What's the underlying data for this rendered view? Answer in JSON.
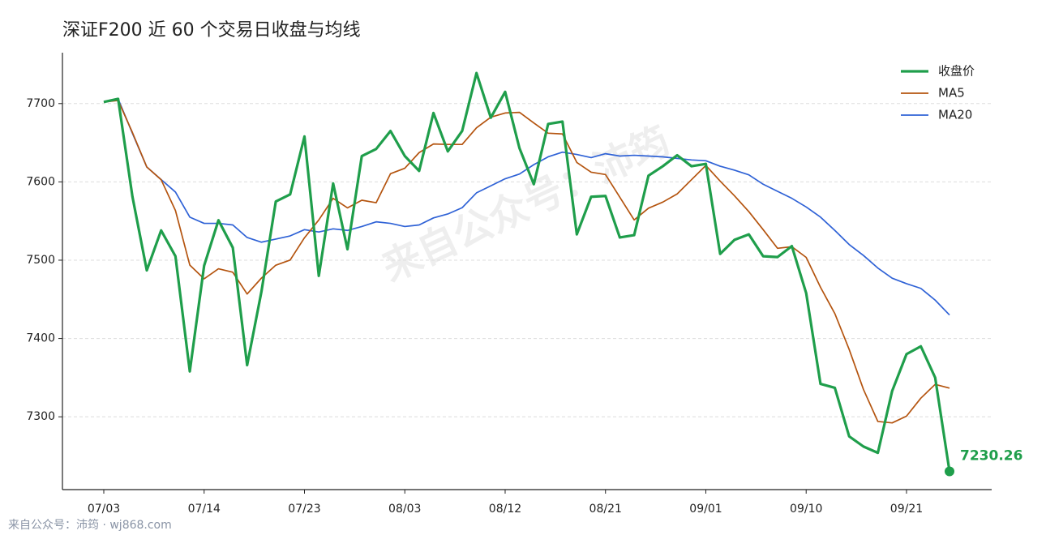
{
  "chart_data": {
    "type": "line",
    "title": "深证F200 近 60 个交易日收盘与均线",
    "watermark": "来自公众号：沛筠",
    "footer": "来自公众号：沛筠 · wj868.com",
    "categories": [
      "07/03",
      null,
      null,
      null,
      null,
      null,
      null,
      "07/14",
      null,
      null,
      null,
      null,
      null,
      null,
      "07/23",
      null,
      null,
      null,
      null,
      null,
      null,
      "08/03",
      null,
      null,
      null,
      null,
      null,
      null,
      "08/12",
      null,
      null,
      null,
      null,
      null,
      null,
      "08/21",
      null,
      null,
      null,
      null,
      null,
      null,
      "09/01",
      null,
      null,
      null,
      null,
      null,
      null,
      "09/10",
      null,
      null,
      null,
      null,
      null,
      null,
      "09/21",
      null,
      null,
      null
    ],
    "series": [
      {
        "name": "收盘价",
        "color": "#1f9e4b",
        "width": 3.2,
        "values": [
          7702,
          7706,
          7581,
          7487,
          7538,
          7505,
          7358,
          7493,
          7551,
          7516,
          7366,
          7460,
          7575,
          7584,
          7658,
          7480,
          7598,
          7514,
          7633,
          7642,
          7665,
          7633,
          7614,
          7688,
          7639,
          7665,
          7739,
          7682,
          7715,
          7643,
          7597,
          7674,
          7677,
          7533,
          7581,
          7582,
          7529,
          7532,
          7608,
          7620,
          7634,
          7620,
          7623,
          7508,
          7526,
          7533,
          7505,
          7504,
          7518,
          7458,
          7342,
          7337,
          7275,
          7262,
          7254,
          7333,
          7380,
          7390,
          7350,
          7230.26
        ]
      },
      {
        "name": "MA5",
        "color": "#b4540f",
        "width": 1.7,
        "values": [
          7702,
          7704,
          7663,
          7619,
          7602.8,
          7563.4,
          7493.8,
          7476.2,
          7489,
          7484.6,
          7456.8,
          7477.2,
          7493.6,
          7500.2,
          7528.6,
          7551.4,
          7579,
          7566.8,
          7576.6,
          7573.4,
          7610.4,
          7617.4,
          7637.4,
          7648.4,
          7647.8,
          7647.8,
          7669,
          7682.6,
          7688,
          7688.8,
          7675.2,
          7662.2,
          7661.2,
          7624.8,
          7612.4,
          7609.4,
          7580.4,
          7551.4,
          7566.4,
          7574.2,
          7584.6,
          7602.8,
          7621,
          7601,
          7582.2,
          7562,
          7539,
          7515.2,
          7517.2,
          7503.6,
          7465.4,
          7431.8,
          7386,
          7334.8,
          7294,
          7292.2,
          7300.8,
          7323.8,
          7341.4,
          7336.6
        ]
      },
      {
        "name": "MA20",
        "color": "#2f62d6",
        "width": 1.7,
        "values": [
          7702,
          7706,
          7662,
          7619,
          7603,
          7587,
          7555,
          7547,
          7547,
          7545,
          7529,
          7523,
          7527,
          7531,
          7539,
          7536,
          7540,
          7538,
          7543,
          7549,
          7547,
          7543,
          7545,
          7554,
          7559,
          7567,
          7586,
          7595,
          7604,
          7610,
          7622,
          7632,
          7638,
          7635,
          7631,
          7636,
          7633,
          7634,
          7633,
          7632,
          7630,
          7628,
          7627,
          7620,
          7615,
          7609,
          7597,
          7588,
          7579,
          7568,
          7555,
          7538,
          7520,
          7506,
          7490,
          7477,
          7470,
          7464,
          7449,
          7430
        ]
      }
    ],
    "ylim": [
      7207,
      7765
    ],
    "yticks": [
      7300,
      7400,
      7500,
      7600,
      7700
    ],
    "grid": true,
    "legend": "upper right"
  }
}
